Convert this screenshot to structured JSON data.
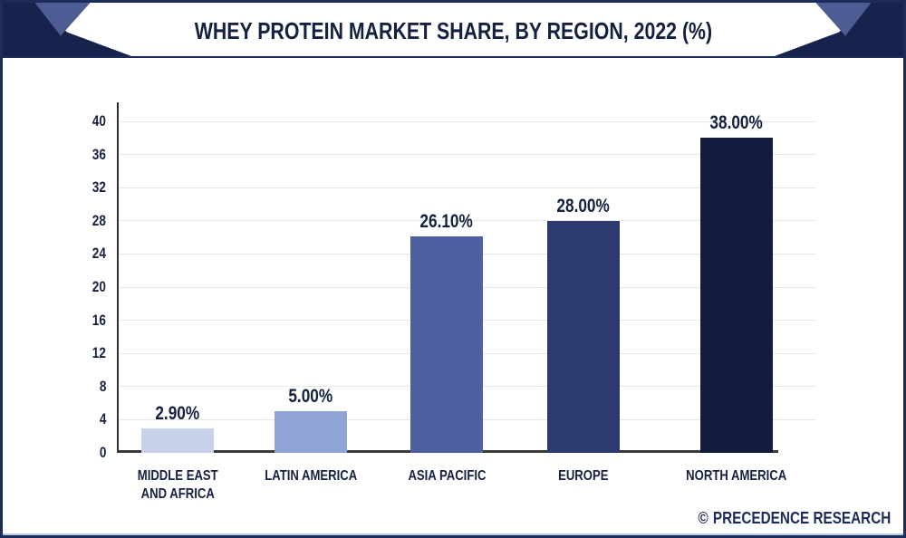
{
  "header": {
    "title": "WHEY PROTEIN MARKET SHARE, BY REGION, 2022 (%)"
  },
  "watermark": {
    "copyright_symbol": "©",
    "text": "PRECEDENCE RESEARCH"
  },
  "colors": {
    "frame_border": "#1e2c59",
    "corner_dark": "#17234d",
    "corner_slate": "#4d5c92",
    "title_text": "#14203f",
    "gridline": "#e6e6e6",
    "axis_line": "#3a3a3a"
  },
  "chart_data": {
    "type": "bar",
    "title": "WHEY PROTEIN MARKET SHARE, BY REGION, 2022 (%)",
    "categories": [
      "MIDDLE EAST\nAND AFRICA",
      "LATIN AMERICA",
      "ASIA PACIFIC",
      "EUROPE",
      "NORTH AMERICA"
    ],
    "values": [
      2.9,
      5.0,
      26.1,
      28.0,
      38.0
    ],
    "value_labels": [
      "2.90%",
      "5.00%",
      "26.10%",
      "28.00%",
      "38.00%"
    ],
    "bar_colors": [
      "#c8d1ea",
      "#8da4d4",
      "#4d5f9e",
      "#2c3a6e",
      "#121c3d"
    ],
    "xlabel": "",
    "ylabel": "",
    "ylim": [
      0,
      40
    ],
    "yticks": [
      0,
      4,
      8,
      12,
      16,
      20,
      24,
      28,
      32,
      36,
      40
    ],
    "grid": "horizontal",
    "legend": "none",
    "unit": "%"
  }
}
